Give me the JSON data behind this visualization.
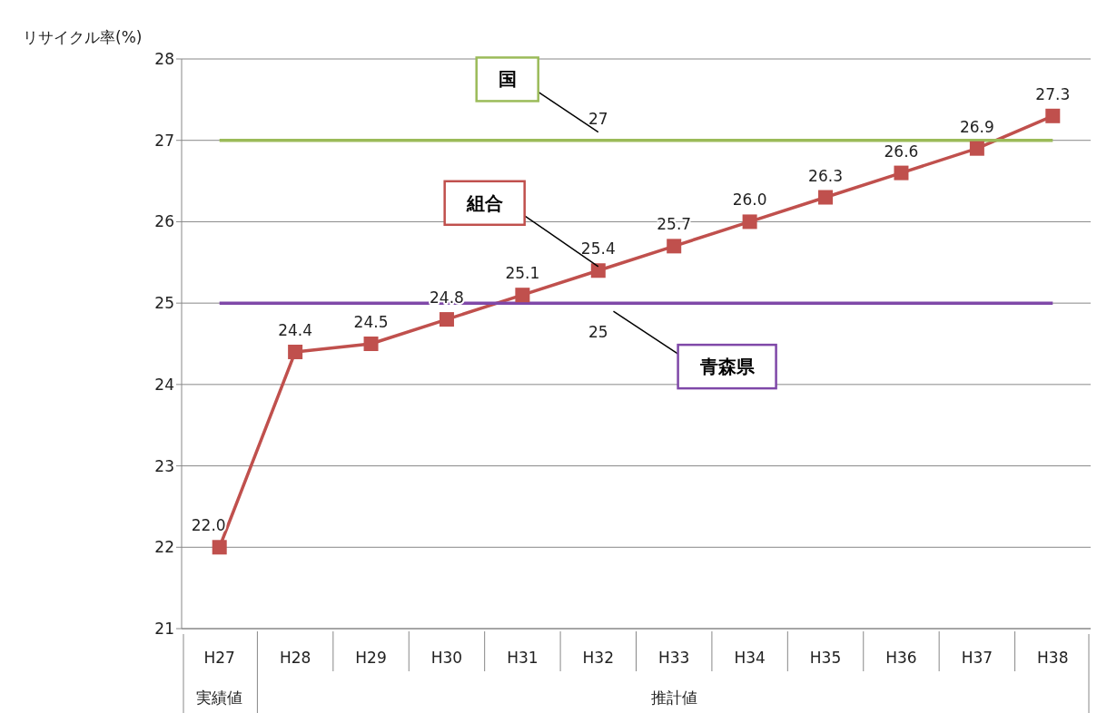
{
  "chart_data": {
    "type": "line",
    "ylabel": "リサイクル率(%)",
    "categories": [
      "H27",
      "H28",
      "H29",
      "H30",
      "H31",
      "H32",
      "H33",
      "H34",
      "H35",
      "H36",
      "H37",
      "H38"
    ],
    "series": [
      {
        "name": "組合",
        "color": "#c0504d",
        "values": [
          22.0,
          24.4,
          24.5,
          24.8,
          25.1,
          25.4,
          25.7,
          26.0,
          26.3,
          26.6,
          26.9,
          27.3
        ],
        "value_labels": [
          "22.0",
          "24.4",
          "24.5",
          "24.8",
          "25.1",
          "25.4",
          "25.7",
          "26.0",
          "26.3",
          "26.6",
          "26.9",
          "27.3"
        ]
      },
      {
        "name": "国",
        "color": "#9bbb59",
        "marker": "none",
        "values": [
          27,
          27,
          27,
          27,
          27,
          27,
          27,
          27,
          27,
          27,
          27,
          27
        ],
        "value_labels": [
          null,
          null,
          null,
          null,
          null,
          "27",
          null,
          null,
          null,
          null,
          null,
          null
        ]
      },
      {
        "name": "青森県",
        "color": "#7f48a8",
        "marker": "none",
        "values": [
          25,
          25,
          25,
          25,
          25,
          25,
          25,
          25,
          25,
          25,
          25,
          25
        ],
        "value_labels": [
          null,
          null,
          null,
          null,
          null,
          "25",
          null,
          null,
          null,
          null,
          null,
          null
        ]
      }
    ],
    "ylim": [
      21,
      28
    ],
    "yticks": [
      21,
      22,
      23,
      24,
      25,
      26,
      27,
      28
    ],
    "grid": "y",
    "legend": false,
    "marker": "square",
    "line_style": "solid",
    "annotations": [
      "実績値",
      "推計値"
    ]
  }
}
